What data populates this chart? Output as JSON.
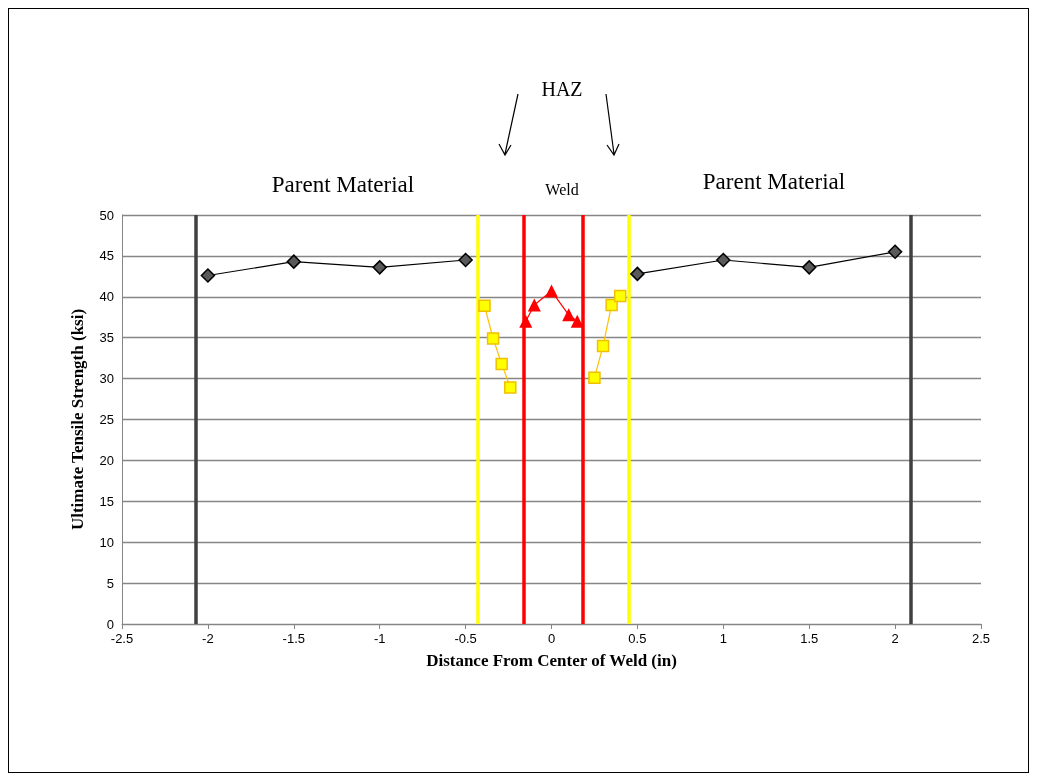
{
  "chart_data": {
    "type": "line",
    "xlabel": "Distance From Center of Weld (in)",
    "ylabel": "Ultimate Tensile Strength (ksi)",
    "annotations": [
      "HAZ",
      "Parent Material",
      "Weld",
      "Parent Material"
    ],
    "series": [
      {
        "color": "#595959",
        "marker": "diamond",
        "x": [
          -2,
          -1.5,
          -1,
          -0.5
        ],
        "values": [
          42.6,
          44.3,
          43.6,
          44.5
        ]
      },
      {
        "color": "#ffff00",
        "marker": "square",
        "x": [
          -0.39,
          -0.34,
          -0.29,
          -0.24
        ],
        "values": [
          38.9,
          34.9,
          31.8,
          28.9
        ]
      },
      {
        "color": "#ff0000",
        "marker": "triangle",
        "x": [
          -0.15,
          -0.1,
          0,
          0.1,
          0.15
        ],
        "values": [
          37,
          39,
          40.7,
          37.8,
          37
        ]
      },
      {
        "color": "#ffff00",
        "marker": "square",
        "x": [
          0.25,
          0.3,
          0.35,
          0.4
        ],
        "values": [
          30.1,
          34,
          39,
          40.1
        ]
      },
      {
        "color": "#595959",
        "marker": "diamond",
        "x": [
          0.5,
          1,
          1.5,
          2
        ],
        "values": [
          42.8,
          44.5,
          43.6,
          45.5
        ]
      }
    ],
    "ref_lines": [
      {
        "axis": "x",
        "value": -2.07,
        "color": "#404040"
      },
      {
        "axis": "x",
        "value": -0.43,
        "color": "#ffff00"
      },
      {
        "axis": "x",
        "value": -0.16,
        "color": "#ff0000"
      },
      {
        "axis": "x",
        "value": 0.18,
        "color": "#ff0000"
      },
      {
        "axis": "x",
        "value": 0.45,
        "color": "#ffff00"
      },
      {
        "axis": "x",
        "value": 2.09,
        "color": "#404040"
      }
    ],
    "xlim": [
      -2.5,
      2.5
    ],
    "xticks": [
      -2.5,
      -2,
      -1.5,
      -1,
      -0.5,
      0,
      0.5,
      1,
      1.5,
      2,
      2.5
    ],
    "ylim": [
      0,
      50
    ],
    "yticks": [
      0,
      5,
      10,
      15,
      20,
      25,
      30,
      35,
      40,
      45,
      50
    ],
    "grid": "y"
  }
}
